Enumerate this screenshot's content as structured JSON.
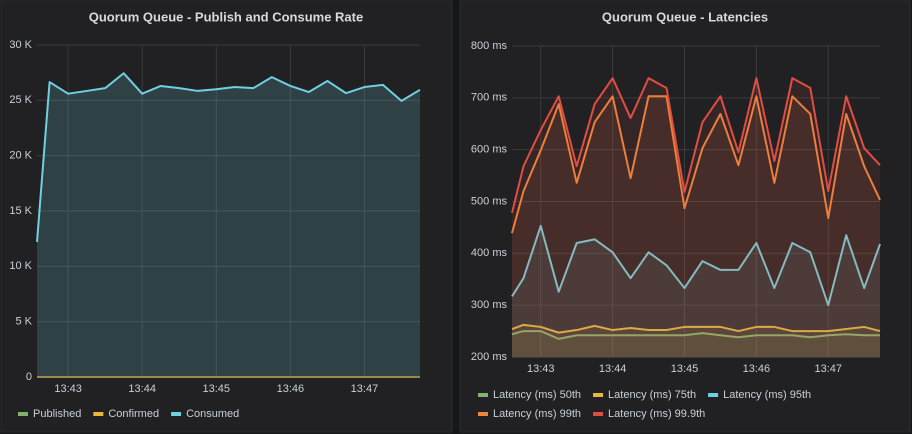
{
  "chart_data": [
    {
      "type": "line",
      "title": "Quorum Queue - Publish and Consume Rate",
      "x": [
        822.58,
        822.75,
        823,
        823.25,
        823.5,
        823.75,
        824,
        824.25,
        824.5,
        824.75,
        825,
        825.25,
        825.5,
        825.75,
        826,
        826.25,
        826.5,
        826.75,
        827,
        827.25,
        827.5,
        827.75
      ],
      "xlim": [
        822.58,
        827.75
      ],
      "xticks": [
        {
          "value": 823,
          "label": "13:43"
        },
        {
          "value": 824,
          "label": "13:44"
        },
        {
          "value": 825,
          "label": "13:45"
        },
        {
          "value": 826,
          "label": "13:46"
        },
        {
          "value": 827,
          "label": "13:47"
        }
      ],
      "ylim": [
        0,
        30000
      ],
      "yticks": [
        0,
        {
          "value": 5000,
          "label": "5 K"
        },
        {
          "value": 10000,
          "label": "10 K"
        },
        {
          "value": 15000,
          "label": "15 K"
        },
        {
          "value": 20000,
          "label": "20 K"
        },
        {
          "value": 25000,
          "label": "25 K"
        },
        {
          "value": 30000,
          "label": "30 K"
        }
      ],
      "grid": true,
      "legend": "bottom",
      "fill": true,
      "series": [
        {
          "name": "Published",
          "color": "#7eb26d",
          "values": [
            0,
            0,
            0,
            0,
            0,
            0,
            0,
            0,
            0,
            0,
            0,
            0,
            0,
            0,
            0,
            0,
            0,
            0,
            0,
            0,
            0,
            0
          ]
        },
        {
          "name": "Confirmed",
          "color": "#eab839",
          "values": [
            0,
            0,
            0,
            0,
            0,
            0,
            0,
            0,
            0,
            0,
            0,
            0,
            0,
            0,
            0,
            0,
            0,
            0,
            0,
            0,
            0,
            0
          ]
        },
        {
          "name": "Consumed",
          "color": "#6ed0e0",
          "values": [
            12200,
            26650,
            25600,
            25850,
            26100,
            27450,
            25600,
            26300,
            26100,
            25850,
            26000,
            26200,
            26100,
            27100,
            26300,
            25750,
            26750,
            25650,
            26200,
            26400,
            24950,
            25950
          ]
        }
      ]
    },
    {
      "type": "line",
      "title": "Quorum Queue - Latencies",
      "x": [
        822.6,
        822.76,
        823,
        823.25,
        823.5,
        823.75,
        824,
        824.25,
        824.5,
        824.75,
        825,
        825.25,
        825.5,
        825.75,
        826,
        826.25,
        826.5,
        826.75,
        827,
        827.25,
        827.5,
        827.72
      ],
      "xlim": [
        822.6,
        827.72
      ],
      "xticks": [
        {
          "value": 823,
          "label": "13:43"
        },
        {
          "value": 824,
          "label": "13:44"
        },
        {
          "value": 825,
          "label": "13:45"
        },
        {
          "value": 826,
          "label": "13:46"
        },
        {
          "value": 827,
          "label": "13:47"
        }
      ],
      "ylim": [
        200,
        800
      ],
      "yticks": [
        {
          "value": 200,
          "label": "200 ms"
        },
        {
          "value": 300,
          "label": "300 ms"
        },
        {
          "value": 400,
          "label": "400 ms"
        },
        {
          "value": 500,
          "label": "500 ms"
        },
        {
          "value": 600,
          "label": "600 ms"
        },
        {
          "value": 700,
          "label": "700 ms"
        },
        {
          "value": 800,
          "label": "800 ms"
        }
      ],
      "grid": true,
      "legend": "bottom",
      "fill": true,
      "series": [
        {
          "name": "Latency (ms) 50th",
          "color": "#7eb26d",
          "values": [
            244,
            250,
            250,
            235,
            242,
            242,
            242,
            242,
            242,
            242,
            242,
            246,
            242,
            238,
            242,
            242,
            242,
            238,
            242,
            244,
            242,
            242
          ]
        },
        {
          "name": "Latency (ms) 75th",
          "color": "#eab839",
          "values": [
            254,
            262,
            258,
            247,
            252,
            260,
            252,
            256,
            252,
            252,
            258,
            258,
            258,
            250,
            258,
            258,
            250,
            250,
            250,
            254,
            258,
            250
          ]
        },
        {
          "name": "Latency (ms) 95th",
          "color": "#6ed0e0",
          "values": [
            317,
            352,
            453,
            326,
            420,
            427,
            402,
            352,
            402,
            377,
            333,
            385,
            368,
            368,
            420,
            333,
            420,
            402,
            300,
            435,
            333,
            418
          ]
        },
        {
          "name": "Latency (ms) 99th",
          "color": "#ef843c",
          "values": [
            439,
            520,
            599,
            688,
            536,
            653,
            703,
            545,
            703,
            703,
            487,
            603,
            669,
            570,
            703,
            536,
            703,
            669,
            468,
            669,
            568,
            503
          ]
        },
        {
          "name": "Latency (ms) 99.9th",
          "color": "#e24d42",
          "values": [
            478,
            568,
            638,
            703,
            568,
            688,
            738,
            661,
            738,
            719,
            518,
            653,
            703,
            595,
            738,
            578,
            738,
            719,
            520,
            703,
            603,
            570
          ]
        }
      ]
    }
  ]
}
